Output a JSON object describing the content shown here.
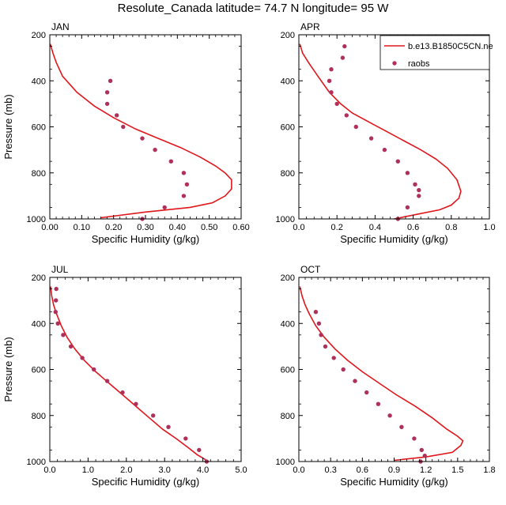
{
  "figure": {
    "title": "Resolute_Canada  latitude= 74.7 N longitude= 95 W"
  },
  "legend": {
    "model_label": "b.e13.B1850C5CN.ne",
    "obs_label": "raobs",
    "model_color": "#e0161b",
    "obs_color": "#b0305c",
    "placement": "top-right of APR panel"
  },
  "chart_data": [
    {
      "type": "line",
      "title": "JAN",
      "xlabel": "Specific Humidity (g/kg)",
      "ylabel": "Pressure (mb)",
      "xlim": [
        0,
        0.6
      ],
      "ylim": [
        1000,
        200
      ],
      "xticks": [
        "0.00",
        "0.10",
        "0.20",
        "0.30",
        "0.40",
        "0.50",
        "0.60"
      ],
      "yticks": [
        "200",
        "400",
        "600",
        "800",
        "1000"
      ],
      "series": [
        {
          "name": "b.e13.B1850C5CN.ne",
          "style": "line",
          "x": [
            0.0014,
            0.01,
            0.02,
            0.04,
            0.085,
            0.14,
            0.2,
            0.27,
            0.34,
            0.41,
            0.47,
            0.52,
            0.55,
            0.57,
            0.57,
            0.55,
            0.51,
            0.44,
            0.3,
            0.16
          ],
          "y": [
            240,
            280,
            320,
            380,
            450,
            510,
            560,
            610,
            650,
            690,
            730,
            770,
            800,
            830,
            870,
            900,
            930,
            950,
            970,
            995
          ]
        },
        {
          "name": "raobs",
          "style": "markers",
          "x": [
            0.19,
            0.18,
            0.18,
            0.21,
            0.23,
            0.29,
            0.33,
            0.38,
            0.42,
            0.43,
            0.42,
            0.36,
            0.29
          ],
          "y": [
            400,
            450,
            500,
            550,
            600,
            650,
            700,
            750,
            800,
            850,
            900,
            950,
            1000
          ]
        }
      ]
    },
    {
      "type": "line",
      "title": "APR",
      "xlabel": "Specific Humidity (g/kg)",
      "ylabel": "",
      "xlim": [
        0,
        1.0
      ],
      "ylim": [
        1000,
        200
      ],
      "xticks": [
        "0.0",
        "0.2",
        "0.4",
        "0.6",
        "0.8",
        "1.0"
      ],
      "yticks": [
        "200",
        "400",
        "600",
        "800",
        "1000"
      ],
      "series": [
        {
          "name": "b.e13.B1850C5CN.ne",
          "style": "line",
          "x": [
            0.005,
            0.02,
            0.05,
            0.1,
            0.16,
            0.22,
            0.28,
            0.37,
            0.46,
            0.55,
            0.64,
            0.72,
            0.78,
            0.83,
            0.85,
            0.84,
            0.8,
            0.74,
            0.62,
            0.5
          ],
          "y": [
            240,
            280,
            320,
            380,
            450,
            500,
            540,
            580,
            620,
            660,
            700,
            740,
            780,
            830,
            880,
            910,
            940,
            960,
            980,
            1000
          ]
        },
        {
          "name": "raobs",
          "style": "markers",
          "x": [
            0.24,
            0.23,
            0.17,
            0.16,
            0.17,
            0.2,
            0.25,
            0.3,
            0.38,
            0.45,
            0.52,
            0.57,
            0.61,
            0.63,
            0.63,
            0.57,
            0.52
          ],
          "y": [
            250,
            300,
            350,
            400,
            450,
            500,
            550,
            600,
            650,
            700,
            750,
            800,
            850,
            875,
            900,
            950,
            1000
          ]
        }
      ]
    },
    {
      "type": "line",
      "title": "JUL",
      "xlabel": "Specific Humidity (g/kg)",
      "ylabel": "Pressure (mb)",
      "xlim": [
        0,
        5.0
      ],
      "ylim": [
        1000,
        200
      ],
      "xticks": [
        "0.0",
        "1.0",
        "2.0",
        "3.0",
        "4.0",
        "5.0"
      ],
      "yticks": [
        "200",
        "400",
        "600",
        "800",
        "1000"
      ],
      "series": [
        {
          "name": "b.e13.B1850C5CN.ne",
          "style": "line",
          "x": [
            0.02,
            0.05,
            0.1,
            0.18,
            0.3,
            0.45,
            0.65,
            0.9,
            1.2,
            1.55,
            1.9,
            2.25,
            2.6,
            2.95,
            3.3,
            3.62,
            3.85,
            4.05,
            4.12
          ],
          "y": [
            240,
            280,
            320,
            360,
            410,
            460,
            510,
            560,
            610,
            660,
            710,
            760,
            810,
            860,
            900,
            940,
            970,
            990,
            1000
          ]
        },
        {
          "name": "raobs",
          "style": "markers",
          "x": [
            0.17,
            0.16,
            0.15,
            0.21,
            0.35,
            0.55,
            0.85,
            1.15,
            1.5,
            1.9,
            2.25,
            2.7,
            3.1,
            3.55,
            3.9,
            4.1
          ],
          "y": [
            250,
            300,
            350,
            400,
            450,
            500,
            550,
            600,
            650,
            700,
            750,
            800,
            850,
            900,
            950,
            1000
          ]
        }
      ]
    },
    {
      "type": "line",
      "title": "OCT",
      "xlabel": "Specific Humidity (g/kg)",
      "ylabel": "",
      "xlim": [
        0,
        1.8
      ],
      "ylim": [
        1000,
        200
      ],
      "xticks": [
        "0.0",
        "0.3",
        "0.6",
        "0.9",
        "1.2",
        "1.5",
        "1.8"
      ],
      "yticks": [
        "200",
        "400",
        "600",
        "800",
        "1000"
      ],
      "series": [
        {
          "name": "b.e13.B1850C5CN.ne",
          "style": "line",
          "x": [
            0.01,
            0.03,
            0.06,
            0.1,
            0.16,
            0.24,
            0.34,
            0.46,
            0.6,
            0.76,
            0.92,
            1.1,
            1.26,
            1.4,
            1.5,
            1.55,
            1.53,
            1.45,
            1.2,
            0.9
          ],
          "y": [
            240,
            280,
            320,
            360,
            410,
            460,
            510,
            560,
            610,
            660,
            710,
            760,
            810,
            860,
            890,
            910,
            930,
            960,
            980,
            995
          ]
        },
        {
          "name": "raobs",
          "style": "markers",
          "x": [
            0.16,
            0.19,
            0.21,
            0.25,
            0.33,
            0.42,
            0.53,
            0.64,
            0.75,
            0.86,
            0.97,
            1.09,
            1.16,
            1.19,
            1.15
          ],
          "y": [
            350,
            400,
            450,
            500,
            550,
            600,
            650,
            700,
            750,
            800,
            850,
            900,
            950,
            975,
            1000
          ]
        }
      ]
    }
  ]
}
